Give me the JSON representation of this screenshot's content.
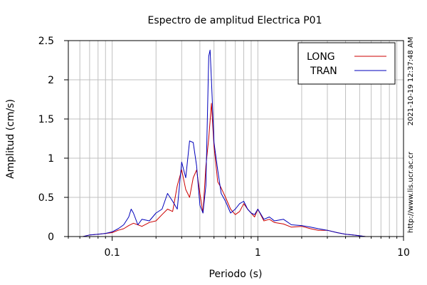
{
  "chart_data": {
    "type": "line",
    "title": "Espectro de amplitud Electrica P01",
    "xlabel": "Periodo (s)",
    "ylabel": "Amplitud (cm/s)",
    "xscale": "log",
    "xlim": [
      0.05,
      10
    ],
    "ylim": [
      0,
      2.5
    ],
    "x_tick_labels": [
      "0.1",
      "1",
      "10"
    ],
    "x_tick_values": [
      0.1,
      1,
      10
    ],
    "y_tick_labels": [
      "0",
      "0.5",
      "1",
      "1.5",
      "2",
      "2.5"
    ],
    "y_tick_values": [
      0,
      0.5,
      1,
      1.5,
      2,
      2.5
    ],
    "grid": true,
    "legend_position": "top-right",
    "timestamp": "2021-10-19 12:37:48 AM",
    "url": "http://www.lis.ucr.ac.cr",
    "series": [
      {
        "name": "LONG",
        "color": "#cc0000",
        "x": [
          0.063,
          0.07,
          0.08,
          0.09,
          0.1,
          0.11,
          0.12,
          0.13,
          0.14,
          0.15,
          0.16,
          0.18,
          0.2,
          0.22,
          0.24,
          0.26,
          0.28,
          0.3,
          0.32,
          0.34,
          0.36,
          0.38,
          0.4,
          0.42,
          0.44,
          0.46,
          0.48,
          0.5,
          0.53,
          0.56,
          0.6,
          0.65,
          0.7,
          0.75,
          0.8,
          0.85,
          0.9,
          0.95,
          1.0,
          1.1,
          1.2,
          1.3,
          1.5,
          1.7,
          2.0,
          2.3,
          2.6,
          3.0,
          3.5,
          4.0,
          4.5,
          5.0,
          5.5
        ],
        "y": [
          0.0,
          0.02,
          0.03,
          0.04,
          0.05,
          0.08,
          0.1,
          0.14,
          0.17,
          0.15,
          0.13,
          0.18,
          0.2,
          0.28,
          0.35,
          0.32,
          0.65,
          0.85,
          0.6,
          0.5,
          0.75,
          0.85,
          0.55,
          0.3,
          0.9,
          1.25,
          1.7,
          1.15,
          0.7,
          0.62,
          0.5,
          0.35,
          0.28,
          0.32,
          0.42,
          0.35,
          0.3,
          0.25,
          0.35,
          0.2,
          0.22,
          0.18,
          0.16,
          0.12,
          0.13,
          0.1,
          0.08,
          0.08,
          0.05,
          0.03,
          0.02,
          0.01,
          0.0
        ]
      },
      {
        "name": "TRAN",
        "color": "#0000bb",
        "x": [
          0.063,
          0.07,
          0.08,
          0.09,
          0.1,
          0.11,
          0.12,
          0.13,
          0.135,
          0.14,
          0.15,
          0.16,
          0.18,
          0.2,
          0.22,
          0.24,
          0.26,
          0.28,
          0.3,
          0.32,
          0.34,
          0.36,
          0.38,
          0.4,
          0.42,
          0.44,
          0.46,
          0.47,
          0.48,
          0.5,
          0.53,
          0.56,
          0.6,
          0.65,
          0.7,
          0.75,
          0.8,
          0.85,
          0.9,
          0.95,
          1.0,
          1.1,
          1.2,
          1.3,
          1.5,
          1.7,
          2.0,
          2.3,
          2.6,
          3.0,
          3.5,
          4.0,
          4.5,
          5.0,
          5.5
        ],
        "y": [
          0.0,
          0.02,
          0.03,
          0.04,
          0.06,
          0.1,
          0.15,
          0.25,
          0.35,
          0.3,
          0.15,
          0.22,
          0.2,
          0.3,
          0.35,
          0.55,
          0.45,
          0.35,
          0.95,
          0.75,
          1.22,
          1.2,
          0.9,
          0.4,
          0.3,
          0.65,
          2.3,
          2.38,
          2.0,
          1.2,
          0.85,
          0.55,
          0.45,
          0.3,
          0.35,
          0.42,
          0.45,
          0.35,
          0.3,
          0.28,
          0.35,
          0.22,
          0.25,
          0.2,
          0.22,
          0.15,
          0.14,
          0.12,
          0.1,
          0.08,
          0.05,
          0.03,
          0.02,
          0.01,
          0.0
        ]
      }
    ]
  }
}
